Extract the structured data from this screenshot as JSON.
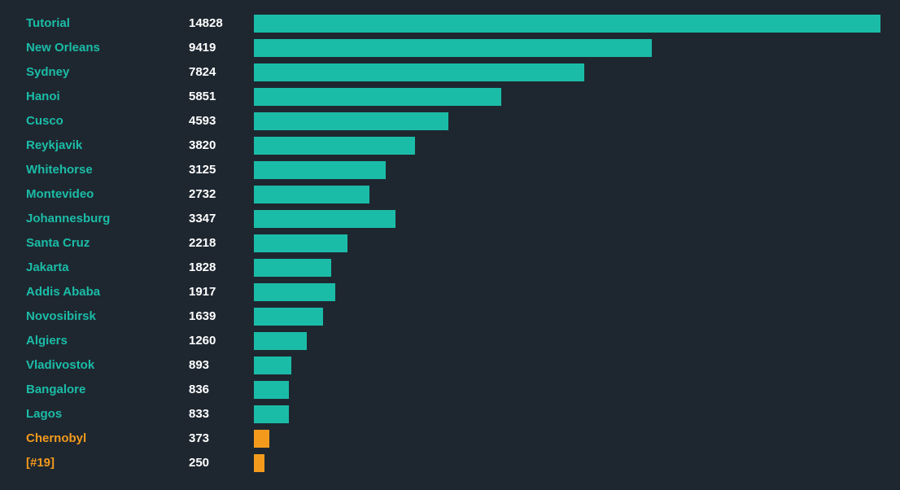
{
  "chart_data": {
    "type": "bar",
    "orientation": "horizontal",
    "max_value": 14828,
    "colors": {
      "default": "#1bbca7",
      "highlight": "#f39a1d",
      "value_text": "#ffffff",
      "background": "#1e2730"
    },
    "categories": [
      "Tutorial",
      "New Orleans",
      "Sydney",
      "Hanoi",
      "Cusco",
      "Reykjavik",
      "Whitehorse",
      "Montevideo",
      "Johannesburg",
      "Santa Cruz",
      "Jakarta",
      "Addis Ababa",
      "Novosibirsk",
      "Algiers",
      "Vladivostok",
      "Bangalore",
      "Lagos",
      "Chernobyl",
      "[#19]"
    ],
    "values": [
      14828,
      9419,
      7824,
      5851,
      4593,
      3820,
      3125,
      2732,
      3347,
      2218,
      1828,
      1917,
      1639,
      1260,
      893,
      836,
      833,
      373,
      250
    ],
    "highlighted": [
      false,
      false,
      false,
      false,
      false,
      false,
      false,
      false,
      false,
      false,
      false,
      false,
      false,
      false,
      false,
      false,
      false,
      true,
      true
    ],
    "title": "",
    "xlabel": "",
    "ylabel": ""
  }
}
